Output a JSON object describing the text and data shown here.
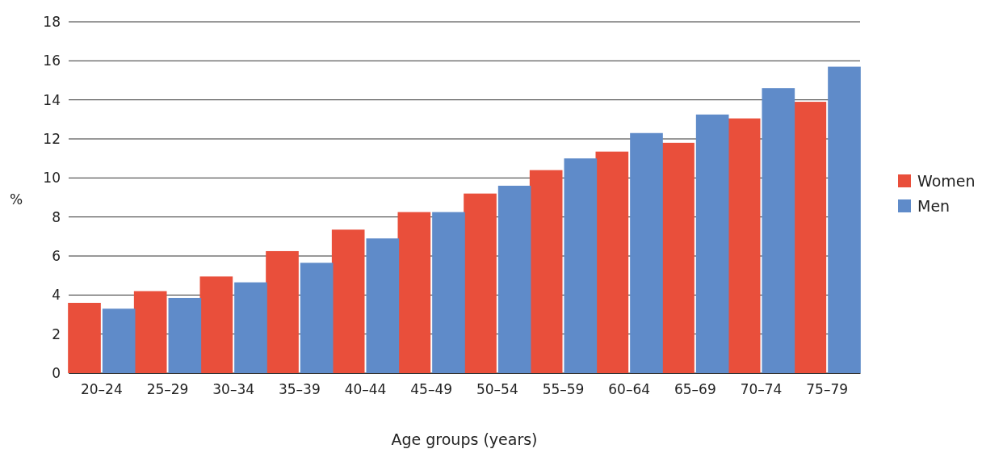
{
  "chart_data": {
    "type": "bar",
    "xlabel": "Age groups (years)",
    "ylabel": "%",
    "categories": [
      "20–24",
      "25–29",
      "30–34",
      "35–39",
      "40–44",
      "45–49",
      "50–54",
      "55–59",
      "60–64",
      "65–69",
      "70–74",
      "75–79"
    ],
    "series": [
      {
        "name": "Women",
        "color": "#e94f3b",
        "values": [
          3.6,
          4.2,
          4.95,
          6.25,
          7.35,
          8.25,
          9.2,
          10.4,
          11.35,
          11.8,
          13.05,
          13.9
        ]
      },
      {
        "name": "Men",
        "color": "#5f8bc9",
        "values": [
          3.3,
          3.85,
          4.65,
          5.65,
          6.9,
          8.25,
          9.6,
          11.0,
          12.3,
          13.25,
          14.6,
          15.7
        ]
      }
    ],
    "ylim": [
      0,
      18
    ],
    "yticks": [
      0,
      2,
      4,
      6,
      8,
      10,
      12,
      14,
      16,
      18
    ],
    "grid": "y",
    "legend": "right"
  }
}
